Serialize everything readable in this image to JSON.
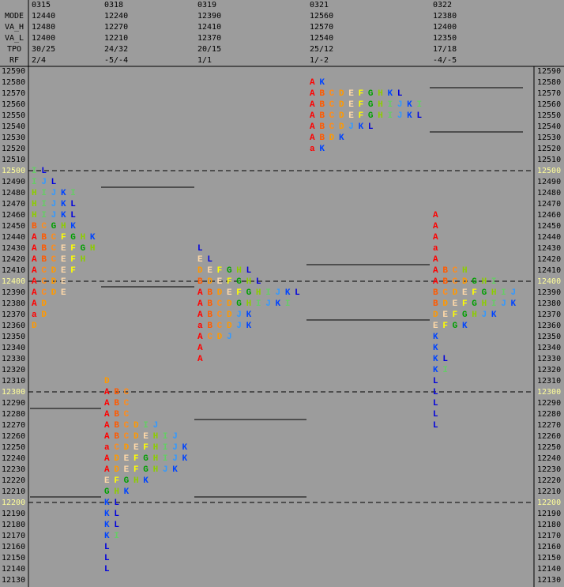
{
  "chart_data": {
    "type": "market-profile",
    "header_labels": [
      "MODE",
      "VA_H",
      "VA_L",
      "TPO",
      "RF"
    ],
    "ylim": [
      12590,
      12130
    ],
    "yticks": [
      12590,
      12580,
      12570,
      12560,
      12550,
      12540,
      12530,
      12520,
      12510,
      12500,
      12490,
      12480,
      12470,
      12460,
      12450,
      12440,
      12430,
      12420,
      12410,
      12400,
      12390,
      12380,
      12370,
      12360,
      12350,
      12340,
      12330,
      12320,
      12310,
      12300,
      12290,
      12280,
      12270,
      12260,
      12250,
      12240,
      12230,
      12220,
      12210,
      12200,
      12190,
      12180,
      12170,
      12160,
      12150,
      12140,
      12130
    ],
    "dashed_lines": [
      12500,
      12400,
      12300,
      12200
    ],
    "background": "#9c9c9c",
    "highlight_color": "#ffff99",
    "letter_colors": {
      "a": "#ff0000",
      "A": "#ff0000",
      "B": "#ff5a00",
      "C": "#ff8c1a",
      "D": "#ff9900",
      "E": "#ffd9a8",
      "F": "#ffff00",
      "G": "#00a000",
      "H": "#8ccc00",
      "I": "#66cc66",
      "J": "#3399ff",
      "K": "#0044ff",
      "L": "#0000dd"
    },
    "profiles": [
      {
        "date": "0315",
        "mode": "12440",
        "va_h": "12480",
        "va_l": "12400",
        "tpo": "30/25",
        "rf": "2/4",
        "prior_va_h": 12280,
        "prior_va_l": 12210,
        "rows": [
          {
            "price": 12500,
            "letters": "IL"
          },
          {
            "price": 12490,
            "letters": "IJL"
          },
          {
            "price": 12480,
            "letters": "HIJKI"
          },
          {
            "price": 12470,
            "letters": "HIJKL"
          },
          {
            "price": 12460,
            "letters": "HIJKL"
          },
          {
            "price": 12450,
            "letters": "BCGHK"
          },
          {
            "price": 12440,
            "letters": "ABCFGHK"
          },
          {
            "price": 12430,
            "letters": "ABCEFGH"
          },
          {
            "price": 12420,
            "letters": "ABCEFH"
          },
          {
            "price": 12410,
            "letters": "ACDEF"
          },
          {
            "price": 12400,
            "letters": "ACDE"
          },
          {
            "price": 12390,
            "letters": "ACDE"
          },
          {
            "price": 12380,
            "letters": "AD"
          },
          {
            "price": 12370,
            "letters": "aD"
          },
          {
            "price": 12360,
            "letters": "D"
          }
        ]
      },
      {
        "date": "0318",
        "mode": "12240",
        "va_h": "12270",
        "va_l": "12210",
        "tpo": "24/32",
        "rf": "-5/-4",
        "rows": [
          {
            "price": 12310,
            "letters": "D"
          },
          {
            "price": 12300,
            "letters": "ABC"
          },
          {
            "price": 12290,
            "letters": "ABC"
          },
          {
            "price": 12280,
            "letters": "ABC"
          },
          {
            "price": 12270,
            "letters": "ABCDIJ"
          },
          {
            "price": 12260,
            "letters": "ABCDEHIJ"
          },
          {
            "price": 12250,
            "letters": "aCDEFHIJK"
          },
          {
            "price": 12240,
            "letters": "ADEFGHIJK"
          },
          {
            "price": 12230,
            "letters": "ADEFGHJK"
          },
          {
            "price": 12220,
            "letters": "EFGHK"
          },
          {
            "price": 12210,
            "letters": "GHK"
          },
          {
            "price": 12200,
            "letters": "KL"
          },
          {
            "price": 12190,
            "letters": "KL"
          },
          {
            "price": 12180,
            "letters": "KL"
          },
          {
            "price": 12170,
            "letters": "KI"
          },
          {
            "price": 12160,
            "letters": "L"
          },
          {
            "price": 12150,
            "letters": "L"
          },
          {
            "price": 12140,
            "letters": "L"
          }
        ]
      },
      {
        "date": "0319",
        "mode": "12390",
        "va_h": "12410",
        "va_l": "12370",
        "tpo": "20/15",
        "rf": "1/1",
        "rows": [
          {
            "price": 12430,
            "letters": "L"
          },
          {
            "price": 12420,
            "letters": "EL"
          },
          {
            "price": 12410,
            "letters": "DEFGHL"
          },
          {
            "price": 12400,
            "letters": "BDEFGHL"
          },
          {
            "price": 12390,
            "letters": "ABDEFGHIJKL"
          },
          {
            "price": 12380,
            "letters": "ABCDGHIJKI"
          },
          {
            "price": 12370,
            "letters": "ABCDJK"
          },
          {
            "price": 12360,
            "letters": "aBCDJK"
          },
          {
            "price": 12350,
            "letters": "ACDJ"
          },
          {
            "price": 12340,
            "letters": "A"
          },
          {
            "price": 12330,
            "letters": "A"
          }
        ]
      },
      {
        "date": "0321",
        "mode": "12560",
        "va_h": "12570",
        "va_l": "12540",
        "tpo": "25/12",
        "rf": "1/-2",
        "rows": [
          {
            "price": 12580,
            "letters": "AK"
          },
          {
            "price": 12570,
            "letters": "ABCDEFGHKL"
          },
          {
            "price": 12560,
            "letters": "ABCDEFGHIJKI"
          },
          {
            "price": 12550,
            "letters": "ABCDEFGHIJKL"
          },
          {
            "price": 12540,
            "letters": "ABCDJKL"
          },
          {
            "price": 12530,
            "letters": "ABDK"
          },
          {
            "price": 12520,
            "letters": "aK"
          }
        ]
      },
      {
        "date": "0322",
        "mode": "12380",
        "va_h": "12400",
        "va_l": "12350",
        "tpo": "17/18",
        "rf": "-4/-5",
        "rows": [
          {
            "price": 12460,
            "letters": "A"
          },
          {
            "price": 12450,
            "letters": "A"
          },
          {
            "price": 12440,
            "letters": "A"
          },
          {
            "price": 12430,
            "letters": "a"
          },
          {
            "price": 12420,
            "letters": "A"
          },
          {
            "price": 12410,
            "letters": "ABCH"
          },
          {
            "price": 12400,
            "letters": "ABCDGHI"
          },
          {
            "price": 12390,
            "letters": "BCDEFGHIJ"
          },
          {
            "price": 12380,
            "letters": "BDEFGHIJK"
          },
          {
            "price": 12370,
            "letters": "DEFGHJK"
          },
          {
            "price": 12360,
            "letters": "EFGK"
          },
          {
            "price": 12350,
            "letters": "K"
          },
          {
            "price": 12340,
            "letters": "K"
          },
          {
            "price": 12330,
            "letters": "KL"
          },
          {
            "price": 12320,
            "letters": "KI"
          },
          {
            "price": 12310,
            "letters": "L"
          },
          {
            "price": 12300,
            "letters": "L"
          },
          {
            "price": 12290,
            "letters": "L"
          },
          {
            "price": 12280,
            "letters": "L"
          },
          {
            "price": 12270,
            "letters": "L"
          }
        ]
      }
    ]
  }
}
